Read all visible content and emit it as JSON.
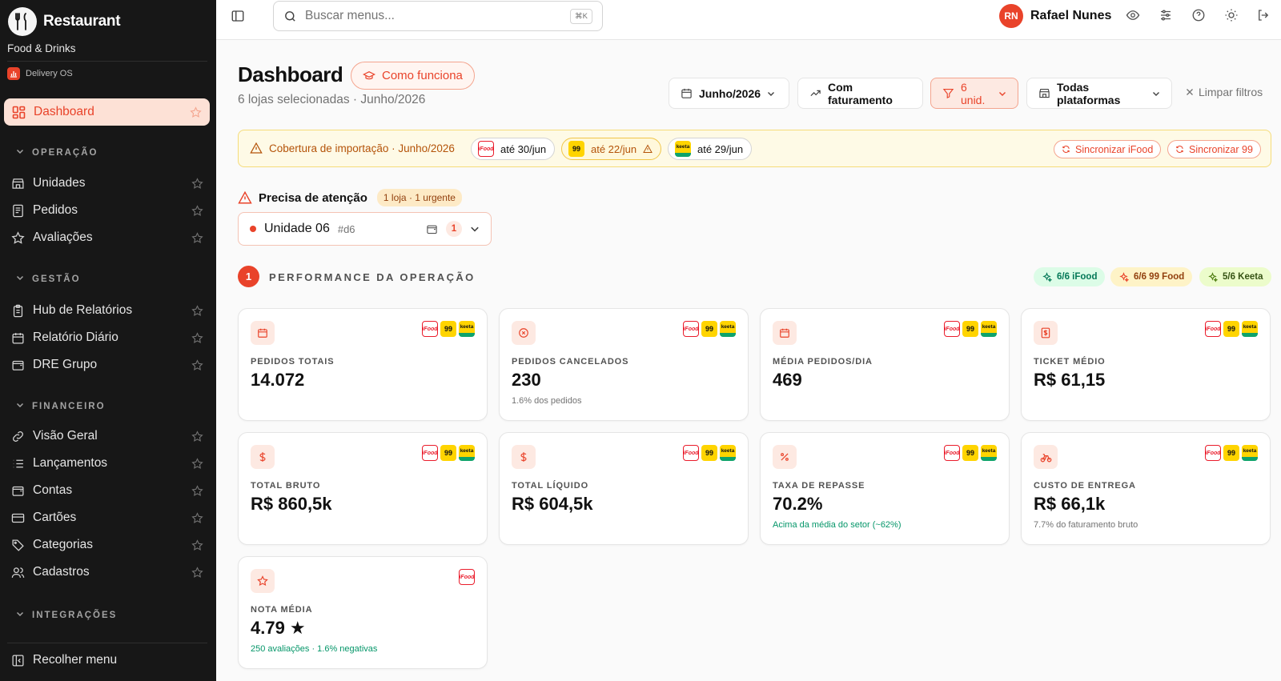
{
  "sidebar": {
    "brand_name": "Restaurant",
    "brand_subtitle": "Food & Drinks",
    "org_name": "Delivery OS",
    "active_item": "Dashboard",
    "sections": [
      {
        "title": "OPERAÇÃO",
        "items": [
          "Unidades",
          "Pedidos",
          "Avaliações"
        ]
      },
      {
        "title": "GESTÃO",
        "items": [
          "Hub de Relatórios",
          "Relatório Diário",
          "DRE Grupo"
        ]
      },
      {
        "title": "FINANCEIRO",
        "items": [
          "Visão Geral",
          "Lançamentos",
          "Contas",
          "Cartões",
          "Categorias",
          "Cadastros"
        ]
      },
      {
        "title": "INTEGRAÇÕES",
        "items": []
      }
    ],
    "collapse_label": "Recolher menu"
  },
  "topbar": {
    "search_placeholder": "Buscar menus...",
    "search_shortcut": "⌘K",
    "user_initials": "RN",
    "user_name": "Rafael Nunes"
  },
  "header": {
    "title": "Dashboard",
    "how_it_works": "Como funciona",
    "subtitle": "6 lojas selecionadas · Junho/2026",
    "filters": {
      "period": "Junho/2026",
      "revenue": "Com faturamento",
      "units": "6 unid.",
      "platforms": "Todas plataformas",
      "clear": "Limpar filtros"
    }
  },
  "coverage": {
    "title": "Cobertura de importação · Junho/2026",
    "chips": [
      {
        "platform": "iFood",
        "text": "até 30/jun",
        "warning": false
      },
      {
        "platform": "99 Food",
        "text": "até 22/jun",
        "warning": true
      },
      {
        "platform": "Keeta",
        "text": "até 29/jun",
        "warning": false
      }
    ],
    "sync_ifood": "Sincronizar iFood",
    "sync_99": "Sincronizar 99"
  },
  "attention": {
    "title": "Precisa de atenção",
    "badge": "1 loja · 1 urgente",
    "unit_name": "Unidade 06",
    "unit_id": "#d6",
    "unit_count": "1"
  },
  "performance": {
    "number": "1",
    "title": "PERFORMANCE DA OPERAÇÃO",
    "platform_chips": [
      "6/6 iFood",
      "6/6 99 Food",
      "5/6 Keeta"
    ]
  },
  "cards": [
    {
      "icon": "calendar-icon",
      "label": "PEDIDOS TOTAIS",
      "value": "14.072",
      "note": "",
      "logos": [
        "ifood",
        "99",
        "keeta"
      ]
    },
    {
      "icon": "cancel-circle-icon",
      "label": "PEDIDOS CANCELADOS",
      "value": "230",
      "note": "1.6% dos pedidos",
      "logos": [
        "ifood",
        "99",
        "keeta"
      ]
    },
    {
      "icon": "calendar-icon",
      "label": "MÉDIA PEDIDOS/DIA",
      "value": "469",
      "note": "",
      "logos": [
        "ifood",
        "99",
        "keeta"
      ]
    },
    {
      "icon": "receipt-icon",
      "label": "TICKET MÉDIO",
      "value": "R$ 61,15",
      "note": "",
      "logos": [
        "ifood",
        "99",
        "keeta"
      ]
    },
    {
      "icon": "dollar-icon",
      "label": "TOTAL BRUTO",
      "value": "R$ 860,5k",
      "note": "",
      "logos": [
        "ifood",
        "99",
        "keeta"
      ]
    },
    {
      "icon": "dollar-icon",
      "label": "TOTAL LÍQUIDO",
      "value": "R$ 604,5k",
      "note": "",
      "logos": [
        "ifood",
        "99",
        "keeta"
      ]
    },
    {
      "icon": "percent-icon",
      "label": "TAXA DE REPASSE",
      "value": "70.2%",
      "note": "Acima da média do setor (~62%)",
      "logos": [
        "ifood",
        "99",
        "keeta"
      ]
    },
    {
      "icon": "bike-icon",
      "label": "CUSTO DE ENTREGA",
      "value": "R$ 66,1k",
      "note": "7.7% do faturamento bruto",
      "logos": [
        "ifood",
        "99",
        "keeta"
      ]
    },
    {
      "icon": "star-icon",
      "label": "NOTA MÉDIA",
      "value": "4.79 ★",
      "note": "250 avaliações · 1.6% negativas",
      "logos": [
        "ifood"
      ]
    }
  ],
  "platform_logo_text": {
    "ifood": "iFood",
    "99": "99",
    "keeta": "keeta"
  },
  "colors": {
    "accent": "#e9432a",
    "sidebar_bg": "#171717",
    "success": "#059669",
    "warning": "#b45309"
  }
}
